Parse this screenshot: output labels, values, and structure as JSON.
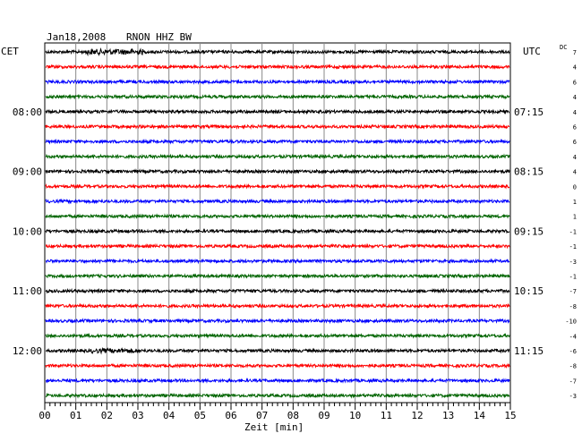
{
  "header": {
    "date": "Jan18,2008",
    "station": "RNON HHZ BW",
    "left_zone": "CET",
    "right_zone": "UTC",
    "dc_label": "DC"
  },
  "chart_data": {
    "type": "line",
    "title": "Jan18,2008   RNON HHZ BW",
    "xlabel": "Zeit [min]",
    "xlim": [
      0,
      15
    ],
    "x_ticks": [
      "00",
      "01",
      "02",
      "03",
      "04",
      "05",
      "06",
      "07",
      "08",
      "09",
      "10",
      "11",
      "12",
      "13",
      "14",
      "15"
    ],
    "trace_count": 24,
    "trace_colors": [
      "#000000",
      "#ff0000",
      "#0000ff",
      "#006400"
    ],
    "left_time_labels": [
      {
        "trace": 4,
        "label": "08:00"
      },
      {
        "trace": 8,
        "label": "09:00"
      },
      {
        "trace": 12,
        "label": "10:00"
      },
      {
        "trace": 16,
        "label": "11:00"
      },
      {
        "trace": 20,
        "label": "12:00"
      }
    ],
    "right_time_labels": [
      {
        "trace": 4,
        "label": "07:15"
      },
      {
        "trace": 8,
        "label": "08:15"
      },
      {
        "trace": 12,
        "label": "09:15"
      },
      {
        "trace": 16,
        "label": "10:15"
      },
      {
        "trace": 20,
        "label": "11:15"
      }
    ],
    "dc_offsets": [
      "7",
      "4",
      "6",
      "4",
      "4",
      "6",
      "6",
      "4",
      "4",
      "0",
      "1",
      "1",
      "-1",
      "-1",
      "-3",
      "-1",
      "-7",
      "-8",
      "-10",
      "-4",
      "-6",
      "-8",
      "-7",
      "-3"
    ]
  },
  "colors": {
    "grid": "#888888",
    "axis": "#000000"
  }
}
